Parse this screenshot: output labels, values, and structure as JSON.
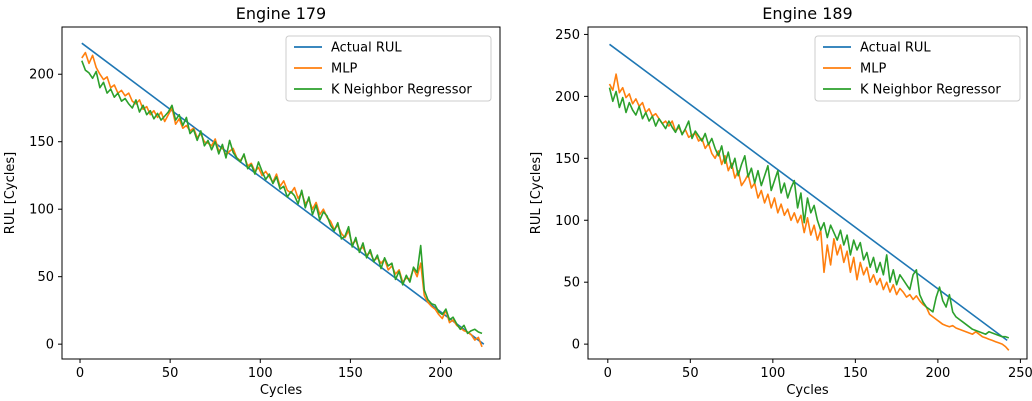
{
  "chart_data": [
    {
      "type": "line",
      "title": "Engine 179",
      "xlabel": "Cycles",
      "ylabel": "RUL [Cycles]",
      "xlim": [
        -10,
        233
      ],
      "ylim": [
        -11,
        235
      ],
      "xticks": [
        0,
        50,
        100,
        150,
        200
      ],
      "yticks": [
        0,
        50,
        100,
        150,
        200
      ],
      "grid": false,
      "legend_position": "top-right",
      "series": [
        {
          "name": "Actual RUL",
          "color": "#1f77b4",
          "x": [
            1,
            224
          ],
          "y": [
            223,
            0
          ]
        },
        {
          "name": "MLP",
          "color": "#ff7f0e",
          "x": [
            1,
            3,
            5,
            7,
            9,
            11,
            13,
            15,
            17,
            19,
            21,
            23,
            25,
            27,
            29,
            31,
            33,
            35,
            37,
            39,
            41,
            43,
            45,
            47,
            49,
            51,
            53,
            55,
            57,
            59,
            61,
            63,
            65,
            67,
            69,
            71,
            73,
            75,
            77,
            79,
            81,
            83,
            85,
            87,
            89,
            91,
            93,
            95,
            97,
            99,
            101,
            103,
            105,
            107,
            109,
            111,
            113,
            115,
            117,
            119,
            121,
            123,
            125,
            127,
            129,
            131,
            133,
            135,
            137,
            139,
            141,
            143,
            145,
            147,
            149,
            151,
            153,
            155,
            157,
            159,
            161,
            163,
            165,
            167,
            169,
            171,
            173,
            175,
            177,
            179,
            181,
            183,
            185,
            187,
            189,
            191,
            193,
            195,
            197,
            199,
            201,
            203,
            205,
            207,
            209,
            211,
            213,
            215,
            217,
            219,
            221,
            223
          ],
          "y": [
            212,
            216,
            208,
            214,
            205,
            200,
            196,
            198,
            190,
            192,
            186,
            188,
            184,
            186,
            180,
            178,
            181,
            174,
            176,
            170,
            173,
            168,
            172,
            165,
            170,
            175,
            163,
            167,
            160,
            162,
            158,
            160,
            153,
            156,
            150,
            149,
            147,
            152,
            143,
            146,
            140,
            143,
            145,
            138,
            136,
            140,
            132,
            134,
            128,
            131,
            125,
            128,
            124,
            120,
            126,
            117,
            121,
            114,
            112,
            116,
            108,
            112,
            104,
            107,
            100,
            105,
            96,
            100,
            94,
            91,
            85,
            88,
            82,
            79,
            84,
            74,
            77,
            70,
            72,
            66,
            68,
            62,
            64,
            60,
            63,
            55,
            58,
            52,
            55,
            46,
            49,
            48,
            56,
            50,
            60,
            36,
            31,
            28,
            26,
            22,
            19,
            25,
            16,
            18,
            14,
            12,
            10,
            9,
            7,
            3,
            5,
            -2
          ]
        },
        {
          "name": "K Neighbor Regressor",
          "color": "#2ca02c",
          "x": [
            1,
            3,
            5,
            7,
            9,
            11,
            13,
            15,
            17,
            19,
            21,
            23,
            25,
            27,
            29,
            31,
            33,
            35,
            37,
            39,
            41,
            43,
            45,
            47,
            49,
            51,
            53,
            55,
            57,
            59,
            61,
            63,
            65,
            67,
            69,
            71,
            73,
            75,
            77,
            79,
            81,
            83,
            85,
            87,
            89,
            91,
            93,
            95,
            97,
            99,
            101,
            103,
            105,
            107,
            109,
            111,
            113,
            115,
            117,
            119,
            121,
            123,
            125,
            127,
            129,
            131,
            133,
            135,
            137,
            139,
            141,
            143,
            145,
            147,
            149,
            151,
            153,
            155,
            157,
            159,
            161,
            163,
            165,
            167,
            169,
            171,
            173,
            175,
            177,
            179,
            181,
            183,
            185,
            187,
            189,
            191,
            193,
            195,
            197,
            199,
            201,
            203,
            205,
            207,
            209,
            211,
            213,
            215,
            217,
            219,
            221,
            223
          ],
          "y": [
            210,
            203,
            201,
            197,
            202,
            190,
            194,
            186,
            189,
            183,
            186,
            180,
            182,
            178,
            175,
            181,
            172,
            177,
            170,
            173,
            167,
            171,
            166,
            169,
            172,
            177,
            166,
            170,
            162,
            168,
            156,
            159,
            151,
            158,
            147,
            151,
            144,
            150,
            141,
            148,
            138,
            151,
            142,
            138,
            135,
            141,
            130,
            133,
            126,
            135,
            128,
            122,
            126,
            119,
            124,
            115,
            117,
            109,
            113,
            110,
            104,
            114,
            101,
            109,
            96,
            103,
            92,
            98,
            95,
            88,
            84,
            90,
            78,
            80,
            87,
            72,
            79,
            68,
            75,
            64,
            70,
            61,
            66,
            56,
            64,
            58,
            60,
            48,
            54,
            44,
            51,
            46,
            57,
            53,
            73,
            40,
            33,
            30,
            29,
            24,
            22,
            26,
            18,
            20,
            15,
            11,
            14,
            8,
            10,
            11,
            9,
            8
          ]
        }
      ]
    },
    {
      "type": "line",
      "title": "Engine 189",
      "xlabel": "Cycles",
      "ylabel": "RUL [Cycles]",
      "xlim": [
        -12,
        254
      ],
      "ylim": [
        -12,
        256
      ],
      "xticks": [
        0,
        50,
        100,
        150,
        200,
        250
      ],
      "yticks": [
        0,
        50,
        100,
        150,
        200,
        250
      ],
      "grid": false,
      "legend_position": "top-right",
      "series": [
        {
          "name": "Actual RUL",
          "color": "#1f77b4",
          "x": [
            1,
            242
          ],
          "y": [
            242,
            3
          ]
        },
        {
          "name": "MLP",
          "color": "#ff7f0e",
          "x": [
            1,
            3,
            5,
            7,
            9,
            11,
            13,
            15,
            17,
            19,
            21,
            23,
            25,
            27,
            29,
            31,
            33,
            35,
            37,
            39,
            41,
            43,
            45,
            47,
            49,
            51,
            53,
            55,
            57,
            59,
            61,
            63,
            65,
            67,
            69,
            71,
            73,
            75,
            77,
            79,
            81,
            83,
            85,
            87,
            89,
            91,
            93,
            95,
            97,
            99,
            101,
            103,
            105,
            107,
            109,
            111,
            113,
            115,
            117,
            119,
            121,
            123,
            125,
            127,
            129,
            131,
            133,
            135,
            137,
            139,
            141,
            143,
            145,
            147,
            149,
            151,
            153,
            155,
            157,
            159,
            161,
            163,
            165,
            167,
            169,
            171,
            173,
            175,
            177,
            179,
            181,
            183,
            185,
            187,
            189,
            191,
            193,
            195,
            197,
            199,
            201,
            203,
            205,
            207,
            209,
            211,
            213,
            215,
            217,
            219,
            221,
            223,
            225,
            227,
            229,
            231,
            233,
            235,
            237,
            239,
            241,
            243
          ],
          "y": [
            210,
            205,
            218,
            203,
            207,
            199,
            202,
            194,
            198,
            192,
            195,
            187,
            190,
            184,
            186,
            182,
            178,
            180,
            176,
            180,
            172,
            175,
            170,
            173,
            167,
            169,
            170,
            164,
            166,
            158,
            162,
            154,
            150,
            156,
            145,
            152,
            140,
            146,
            134,
            140,
            128,
            132,
            137,
            126,
            130,
            118,
            124,
            114,
            121,
            110,
            118,
            106,
            113,
            104,
            109,
            100,
            106,
            98,
            104,
            90,
            102,
            88,
            96,
            84,
            92,
            58,
            80,
            64,
            85,
            72,
            80,
            66,
            75,
            58,
            70,
            52,
            66,
            56,
            62,
            50,
            56,
            48,
            53,
            44,
            50,
            42,
            48,
            40,
            45,
            42,
            38,
            40,
            36,
            39,
            35,
            32,
            30,
            24,
            22,
            20,
            18,
            16,
            15,
            14,
            15,
            13,
            12,
            11,
            10,
            9,
            8,
            10,
            8,
            6,
            5,
            4,
            3,
            2,
            1,
            0,
            -2,
            -5
          ],
          "x_note": ""
        },
        {
          "name": "K Neighbor Regressor",
          "color": "#2ca02c",
          "x": [
            1,
            3,
            5,
            7,
            9,
            11,
            13,
            15,
            17,
            19,
            21,
            23,
            25,
            27,
            29,
            31,
            33,
            35,
            37,
            39,
            41,
            43,
            45,
            47,
            49,
            51,
            53,
            55,
            57,
            59,
            61,
            63,
            65,
            67,
            69,
            71,
            73,
            75,
            77,
            79,
            81,
            83,
            85,
            87,
            89,
            91,
            93,
            95,
            97,
            99,
            101,
            103,
            105,
            107,
            109,
            111,
            113,
            115,
            117,
            119,
            121,
            123,
            125,
            127,
            129,
            131,
            133,
            135,
            137,
            139,
            141,
            143,
            145,
            147,
            149,
            151,
            153,
            155,
            157,
            159,
            161,
            163,
            165,
            167,
            169,
            171,
            173,
            175,
            177,
            179,
            181,
            183,
            185,
            187,
            189,
            191,
            193,
            195,
            197,
            199,
            201,
            203,
            205,
            207,
            209,
            211,
            213,
            215,
            217,
            219,
            221,
            223,
            225,
            227,
            229,
            231,
            233,
            235,
            237,
            239,
            241,
            243
          ],
          "y": [
            207,
            196,
            204,
            191,
            199,
            187,
            195,
            189,
            185,
            192,
            182,
            187,
            180,
            184,
            176,
            182,
            178,
            174,
            180,
            175,
            171,
            177,
            169,
            174,
            180,
            166,
            172,
            168,
            164,
            170,
            161,
            166,
            158,
            152,
            160,
            146,
            155,
            142,
            150,
            136,
            145,
            152,
            135,
            142,
            130,
            140,
            128,
            136,
            144,
            124,
            132,
            140,
            122,
            130,
            118,
            126,
            132,
            110,
            122,
            98,
            118,
            106,
            112,
            100,
            92,
            98,
            86,
            96,
            90,
            84,
            92,
            80,
            88,
            72,
            84,
            76,
            82,
            68,
            74,
            62,
            70,
            58,
            66,
            56,
            72,
            50,
            60,
            48,
            56,
            52,
            48,
            44,
            56,
            60,
            40,
            34,
            30,
            28,
            26,
            38,
            46,
            35,
            30,
            40,
            26,
            22,
            20,
            18,
            16,
            14,
            12,
            11,
            10,
            9,
            8,
            10,
            9,
            8,
            7,
            6,
            6,
            5
          ]
        }
      ]
    }
  ]
}
